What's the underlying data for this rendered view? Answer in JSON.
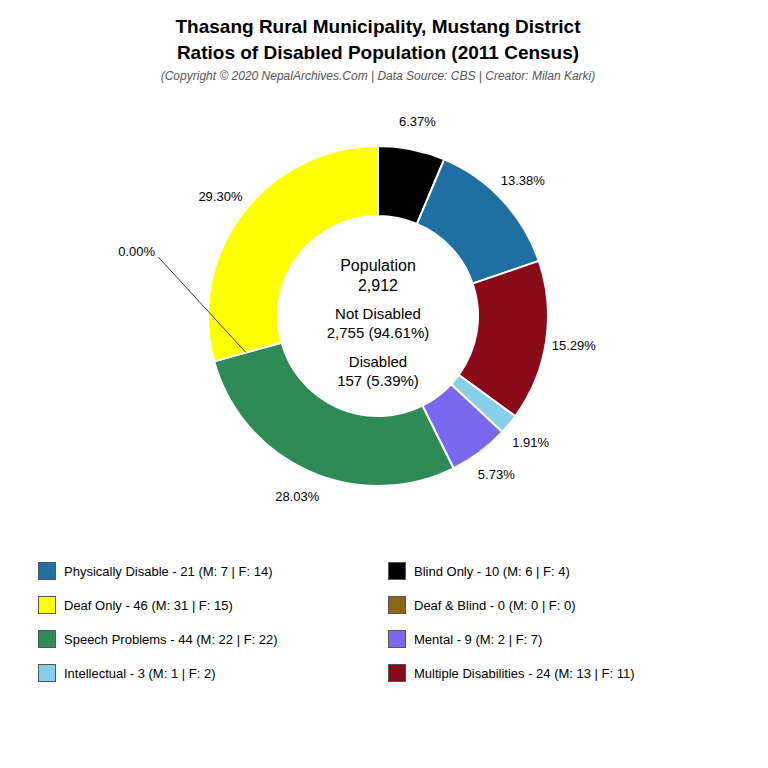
{
  "chart_data": {
    "type": "pie",
    "title": "Thasang Rural Municipality, Mustang District\nRatios of Disabled Population (2011 Census)",
    "subtitle": "(Copyright © 2020 NepalArchives.Com | Data Source: CBS | Creator: Milan Karki)",
    "values": [
      6.37,
      13.38,
      15.29,
      1.91,
      5.73,
      28.03,
      0.0,
      29.3
    ],
    "value_labels": [
      "6.37%",
      "13.38%",
      "15.29%",
      "1.91%",
      "5.73%",
      "28.03%",
      "0.00%",
      "29.30%"
    ],
    "colors": [
      "#000000",
      "#1f6fa3",
      "#8b0a1a",
      "#87ceeb",
      "#7b68ee",
      "#2e8b57",
      "#8B6914",
      "#ffff00"
    ],
    "data_labels": true,
    "annotations": [
      "Population\n2,912",
      "Not Disabled\n2,755 (94.61%)",
      "Disabled\n157 (5.39%)"
    ],
    "legend": "bottom",
    "series": [
      {
        "name": "Physically Disable - 21 (M: 7 | F: 14)",
        "color": "#1f6fa3"
      },
      {
        "name": "Deaf Only - 46 (M: 31 | F: 15)",
        "color": "#ffff00"
      },
      {
        "name": "Speech Problems - 44 (M: 22 | F: 22)",
        "color": "#2e8b57"
      },
      {
        "name": "Intellectual - 3 (M: 1 | F: 2)",
        "color": "#87ceeb"
      },
      {
        "name": "Blind Only - 10 (M: 6 | F: 4)",
        "color": "#000000"
      },
      {
        "name": "Deaf & Blind - 0 (M: 0 | F: 0)",
        "color": "#8B6914"
      },
      {
        "name": "Mental - 9 (M: 2 | F: 7)",
        "color": "#7b68ee"
      },
      {
        "name": "Multiple Disabilities - 24 (M: 13 | F: 11)",
        "color": "#8b0a1a"
      }
    ]
  }
}
